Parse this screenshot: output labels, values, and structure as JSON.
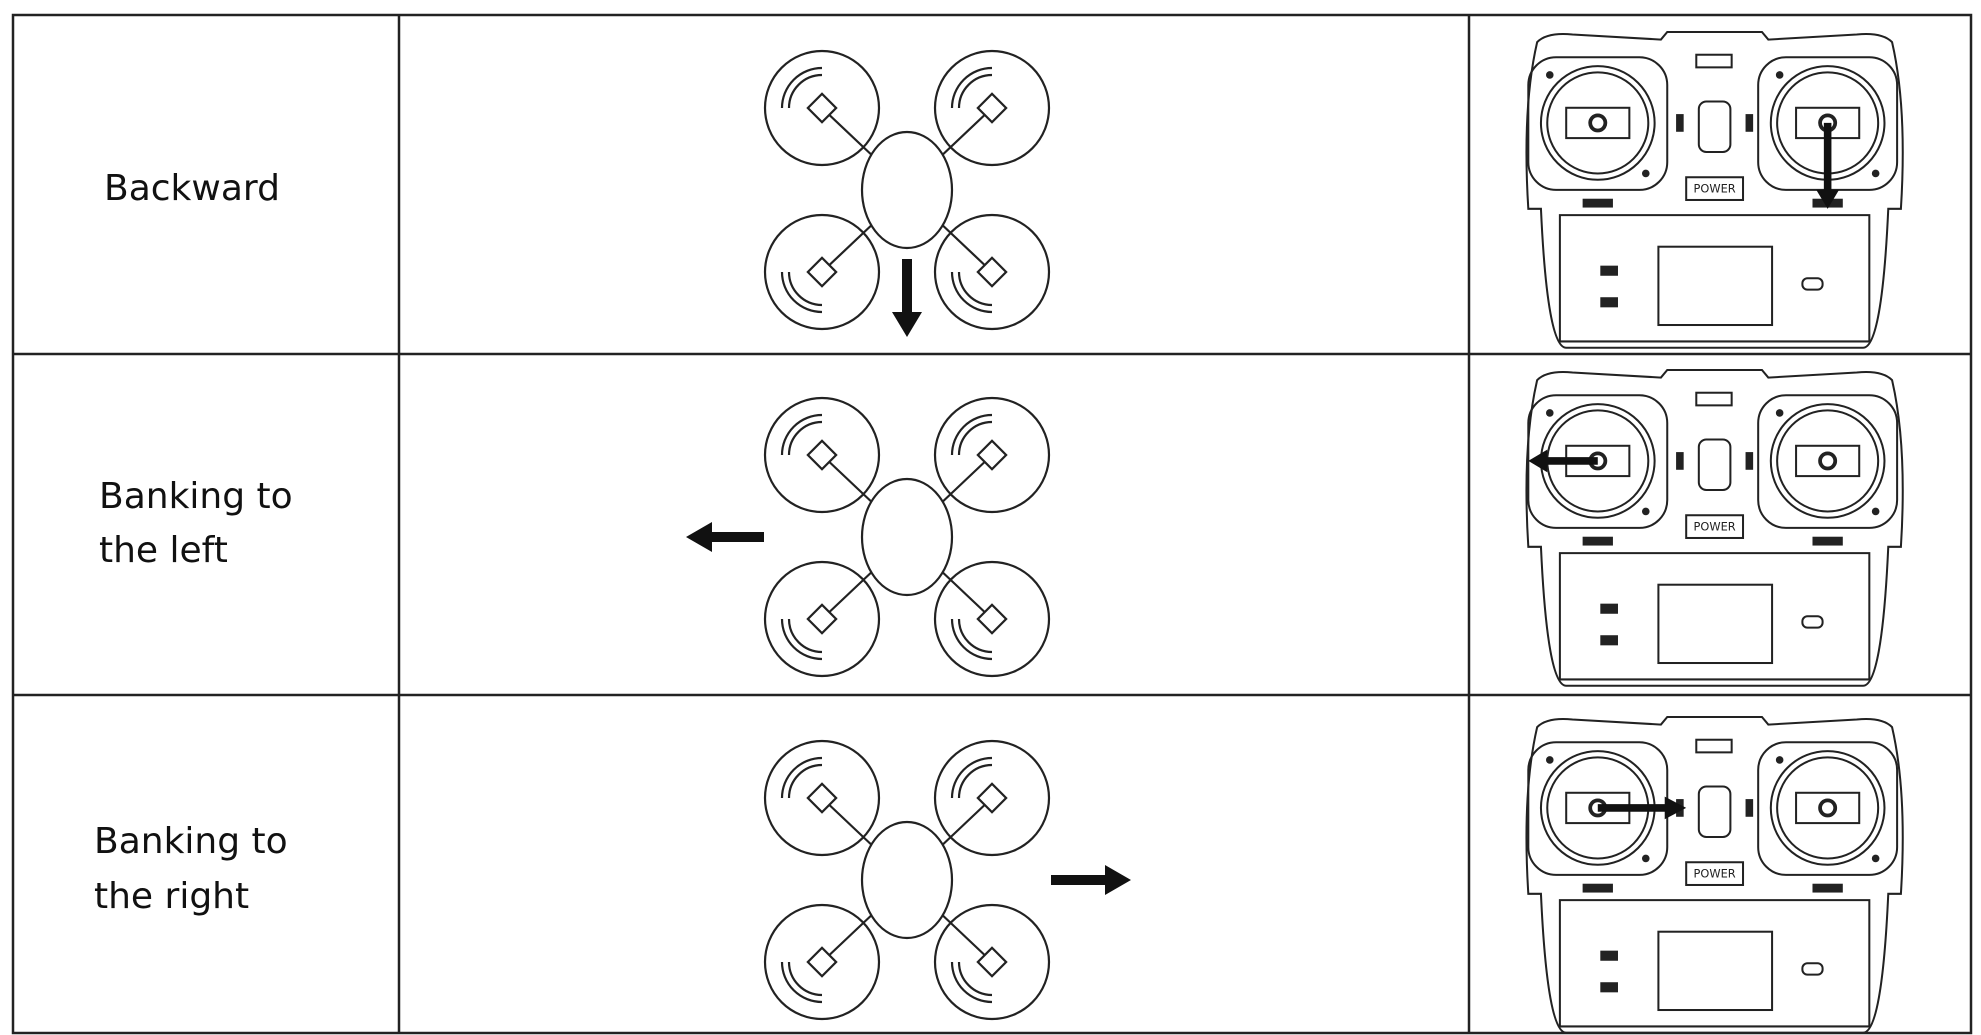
{
  "table": {
    "rows": [
      {
        "label": [
          "Backward"
        ],
        "remote_label": "POWER"
      },
      {
        "label": [
          "Banking to",
          "the left"
        ],
        "remote_label": "POWER"
      },
      {
        "label": [
          "Banking to",
          "the right"
        ],
        "remote_label": "POWER"
      }
    ]
  }
}
